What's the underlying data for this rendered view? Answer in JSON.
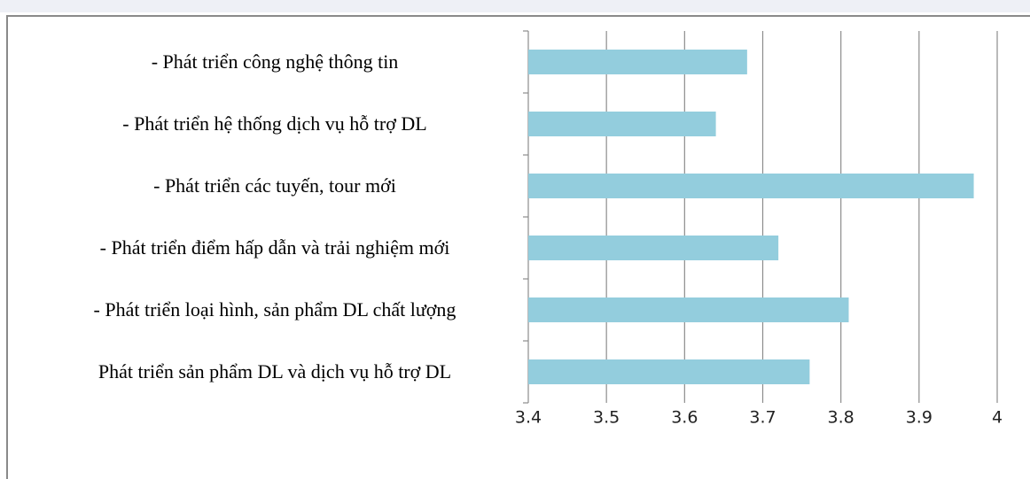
{
  "chart_data": {
    "type": "bar",
    "orientation": "horizontal",
    "categories": [
      "- Phát triển công nghệ thông tin",
      "- Phát triển hệ thống dịch vụ hỗ trợ DL",
      "- Phát triển các tuyến, tour mới",
      "- Phát triển điểm hấp dẫn và trải nghiệm mới",
      "- Phát triển loại hình, sản phẩm DL chất lượng",
      "Phát triển sản phẩm DL và dịch vụ hỗ trợ DL"
    ],
    "values": [
      3.68,
      3.64,
      3.97,
      3.72,
      3.81,
      3.76
    ],
    "color": "#93cddd",
    "xlim": [
      3.4,
      4
    ],
    "xticks": [
      3.4,
      3.5,
      3.6,
      3.7,
      3.8,
      3.9,
      4
    ],
    "grid": true
  }
}
